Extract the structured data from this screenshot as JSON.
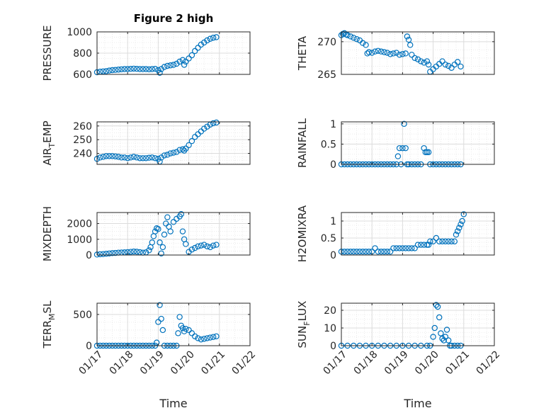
{
  "title": "Figure 2 high",
  "marker_color": "#0072bd",
  "chart_data": [
    {
      "type": "scatter",
      "ylabel": "PRESSURE",
      "ylabel_sub": "",
      "ylim": [
        600,
        1000
      ],
      "yticks": [
        600,
        800,
        1000
      ],
      "ytick_labels": [
        "600",
        "800",
        "1000"
      ],
      "xlim": [
        0,
        5
      ],
      "xticks": [
        0,
        1,
        2,
        3,
        4,
        5
      ],
      "xtick_labels": [
        "01/17",
        "01/18",
        "01/19",
        "01/20",
        "01/21",
        "01/22"
      ],
      "show_xticklabels": false,
      "xlabel": "",
      "x": [
        0.0,
        0.1,
        0.2,
        0.3,
        0.4,
        0.5,
        0.6,
        0.7,
        0.8,
        0.9,
        1.0,
        1.1,
        1.2,
        1.3,
        1.4,
        1.5,
        1.6,
        1.7,
        1.8,
        1.9,
        2.0,
        2.05,
        2.1,
        2.2,
        2.3,
        2.4,
        2.5,
        2.6,
        2.7,
        2.8,
        2.85,
        2.9,
        3.0,
        3.1,
        3.2,
        3.3,
        3.4,
        3.5,
        3.6,
        3.7,
        3.8,
        3.9
      ],
      "y": [
        620,
        625,
        628,
        630,
        636,
        640,
        642,
        645,
        648,
        650,
        650,
        652,
        654,
        652,
        650,
        650,
        650,
        648,
        650,
        652,
        640,
        615,
        650,
        670,
        680,
        685,
        690,
        700,
        720,
        735,
        690,
        720,
        750,
        780,
        820,
        850,
        880,
        900,
        920,
        935,
        945,
        950
      ]
    },
    {
      "type": "scatter",
      "ylabel": "THETA",
      "ylabel_sub": "",
      "ylim": [
        265,
        271.5
      ],
      "yticks": [
        265,
        270
      ],
      "ytick_labels": [
        "265",
        "270"
      ],
      "xlim": [
        0,
        5
      ],
      "xticks": [
        0,
        1,
        2,
        3,
        4,
        5
      ],
      "xtick_labels": [
        "01/17",
        "01/18",
        "01/19",
        "01/20",
        "01/21",
        "01/22"
      ],
      "show_xticklabels": false,
      "xlabel": "",
      "x": [
        0.0,
        0.05,
        0.1,
        0.15,
        0.2,
        0.3,
        0.4,
        0.5,
        0.6,
        0.7,
        0.8,
        0.85,
        0.9,
        1.0,
        1.1,
        1.2,
        1.3,
        1.4,
        1.5,
        1.6,
        1.7,
        1.8,
        1.9,
        2.0,
        2.1,
        2.15,
        2.2,
        2.25,
        2.3,
        2.4,
        2.5,
        2.6,
        2.7,
        2.8,
        2.85,
        2.9,
        3.0,
        3.1,
        3.2,
        3.3,
        3.4,
        3.5,
        3.6,
        3.7,
        3.8,
        3.9
      ],
      "y": [
        271.0,
        271.2,
        271.3,
        271.1,
        271.0,
        270.8,
        270.6,
        270.4,
        270.2,
        269.8,
        269.5,
        268.2,
        268.4,
        268.3,
        268.5,
        268.6,
        268.5,
        268.4,
        268.3,
        268.1,
        268.2,
        268.3,
        268.0,
        268.1,
        268.2,
        270.8,
        270.3,
        269.5,
        268.0,
        267.5,
        267.3,
        267.0,
        266.8,
        267.0,
        266.5,
        265.4,
        265.8,
        266.2,
        266.6,
        267.0,
        266.5,
        266.3,
        266.0,
        266.5,
        266.9,
        266.2
      ]
    },
    {
      "type": "scatter",
      "ylabel": "AIR",
      "ylabel_sub": "T",
      "ylabel_after": "EMP",
      "ylim": [
        232,
        263
      ],
      "yticks": [
        240,
        250,
        260
      ],
      "ytick_labels": [
        "240",
        "250",
        "260"
      ],
      "xlim": [
        0,
        5
      ],
      "xticks": [
        0,
        1,
        2,
        3,
        4,
        5
      ],
      "xtick_labels": [
        "01/17",
        "01/18",
        "01/19",
        "01/20",
        "01/21",
        "01/22"
      ],
      "show_xticklabels": false,
      "xlabel": "",
      "x": [
        0.0,
        0.1,
        0.2,
        0.3,
        0.4,
        0.5,
        0.6,
        0.7,
        0.8,
        0.9,
        1.0,
        1.1,
        1.2,
        1.3,
        1.4,
        1.5,
        1.6,
        1.7,
        1.8,
        1.9,
        2.0,
        2.05,
        2.1,
        2.2,
        2.3,
        2.4,
        2.5,
        2.6,
        2.7,
        2.8,
        2.85,
        2.9,
        3.0,
        3.1,
        3.2,
        3.3,
        3.4,
        3.5,
        3.6,
        3.7,
        3.8,
        3.9
      ],
      "y": [
        236,
        237,
        237.5,
        238,
        238,
        238,
        237.8,
        237.5,
        237,
        237,
        236.5,
        237,
        237.5,
        237,
        236.5,
        236.5,
        236.5,
        236.8,
        237,
        236.5,
        236,
        234,
        237,
        238.5,
        239,
        240,
        240.5,
        241,
        242.5,
        243,
        242,
        243.5,
        246,
        249,
        252,
        254,
        256,
        258,
        259.5,
        261,
        262,
        262.5
      ]
    },
    {
      "type": "scatter",
      "ylabel": "RAINFALL",
      "ylabel_sub": "",
      "ylim": [
        0,
        1.05
      ],
      "yticks": [
        0,
        0.5,
        1
      ],
      "ytick_labels": [
        "0",
        "0.5",
        "1"
      ],
      "xlim": [
        0,
        5
      ],
      "xticks": [
        0,
        1,
        2,
        3,
        4,
        5
      ],
      "xtick_labels": [
        "01/17",
        "01/18",
        "01/19",
        "01/20",
        "01/21",
        "01/22"
      ],
      "show_xticklabels": false,
      "xlabel": "",
      "x": [
        0.0,
        0.1,
        0.2,
        0.3,
        0.4,
        0.5,
        0.6,
        0.7,
        0.8,
        0.9,
        1.0,
        1.1,
        1.2,
        1.3,
        1.4,
        1.5,
        1.6,
        1.7,
        1.8,
        1.85,
        1.9,
        1.95,
        2.0,
        2.05,
        2.1,
        2.15,
        2.2,
        2.3,
        2.4,
        2.5,
        2.6,
        2.7,
        2.75,
        2.8,
        2.85,
        2.9,
        3.0,
        3.1,
        3.2,
        3.3,
        3.4,
        3.5,
        3.6,
        3.7,
        3.8,
        3.9
      ],
      "y": [
        0,
        0,
        0,
        0,
        0,
        0,
        0,
        0,
        0,
        0,
        0,
        0,
        0,
        0,
        0,
        0,
        0,
        0,
        0,
        0.2,
        0.4,
        0,
        0.4,
        1.0,
        0.4,
        0,
        0,
        0,
        0,
        0,
        0,
        0.4,
        0.3,
        0.3,
        0.3,
        0,
        0,
        0,
        0,
        0,
        0,
        0,
        0,
        0,
        0,
        0
      ]
    },
    {
      "type": "scatter",
      "ylabel": "MIXDEPTH",
      "ylabel_sub": "",
      "ylim": [
        0,
        2700
      ],
      "yticks": [
        0,
        1000,
        2000
      ],
      "ytick_labels": [
        "0",
        "1000",
        "2000"
      ],
      "xlim": [
        0,
        5
      ],
      "xticks": [
        0,
        1,
        2,
        3,
        4,
        5
      ],
      "xtick_labels": [
        "01/17",
        "01/18",
        "01/19",
        "01/20",
        "01/21",
        "01/22"
      ],
      "show_xticklabels": false,
      "xlabel": "",
      "x": [
        0.0,
        0.1,
        0.2,
        0.3,
        0.4,
        0.5,
        0.6,
        0.7,
        0.8,
        0.9,
        1.0,
        1.1,
        1.2,
        1.3,
        1.4,
        1.5,
        1.6,
        1.7,
        1.75,
        1.8,
        1.85,
        1.9,
        1.95,
        2.0,
        2.05,
        2.1,
        2.15,
        2.2,
        2.25,
        2.3,
        2.35,
        2.4,
        2.5,
        2.6,
        2.7,
        2.75,
        2.8,
        2.85,
        2.9,
        3.0,
        3.1,
        3.2,
        3.3,
        3.4,
        3.5,
        3.6,
        3.7,
        3.8,
        3.9
      ],
      "y": [
        30,
        50,
        60,
        80,
        100,
        120,
        130,
        150,
        160,
        170,
        180,
        200,
        220,
        210,
        180,
        150,
        170,
        300,
        500,
        800,
        1200,
        1500,
        1700,
        1650,
        800,
        100,
        500,
        1300,
        2000,
        2400,
        1800,
        1500,
        2100,
        2300,
        2450,
        2600,
        1500,
        1000,
        700,
        200,
        350,
        450,
        550,
        600,
        650,
        550,
        500,
        600,
        650
      ]
    },
    {
      "type": "scatter",
      "ylabel": "H2OMIXRA",
      "ylabel_sub": "",
      "ylim": [
        0,
        1.25
      ],
      "yticks": [
        0,
        0.5,
        1
      ],
      "ytick_labels": [
        "0",
        "0.5",
        "1"
      ],
      "xlim": [
        0,
        5
      ],
      "xticks": [
        0,
        1,
        2,
        3,
        4,
        5
      ],
      "xtick_labels": [
        "01/17",
        "01/18",
        "01/19",
        "01/20",
        "01/21",
        "01/22"
      ],
      "show_xticklabels": false,
      "xlabel": "",
      "x": [
        0.0,
        0.1,
        0.2,
        0.3,
        0.4,
        0.5,
        0.6,
        0.7,
        0.8,
        0.9,
        1.0,
        1.1,
        1.2,
        1.3,
        1.4,
        1.5,
        1.6,
        1.7,
        1.8,
        1.9,
        2.0,
        2.1,
        2.2,
        2.3,
        2.4,
        2.5,
        2.6,
        2.7,
        2.8,
        2.85,
        2.9,
        3.0,
        3.1,
        3.2,
        3.3,
        3.4,
        3.5,
        3.6,
        3.7,
        3.75,
        3.8,
        3.85,
        3.9,
        3.95,
        4.0
      ],
      "y": [
        0.1,
        0.1,
        0.1,
        0.1,
        0.1,
        0.1,
        0.1,
        0.1,
        0.1,
        0.1,
        0.1,
        0.2,
        0.1,
        0.1,
        0.1,
        0.1,
        0.1,
        0.2,
        0.2,
        0.2,
        0.2,
        0.2,
        0.2,
        0.2,
        0.2,
        0.3,
        0.3,
        0.3,
        0.3,
        0.3,
        0.4,
        0.4,
        0.5,
        0.4,
        0.4,
        0.4,
        0.4,
        0.4,
        0.4,
        0.6,
        0.7,
        0.8,
        0.9,
        1.0,
        1.2
      ]
    },
    {
      "type": "scatter",
      "ylabel": "TERR",
      "ylabel_sub": "M",
      "ylabel_after": "SL",
      "ylim": [
        0,
        680
      ],
      "yticks": [
        0,
        500
      ],
      "ytick_labels": [
        "0",
        "500"
      ],
      "xlim": [
        0,
        5
      ],
      "xticks": [
        0,
        1,
        2,
        3,
        4,
        5
      ],
      "xtick_labels": [
        "01/17",
        "01/18",
        "01/19",
        "01/20",
        "01/21",
        "01/22"
      ],
      "show_xticklabels": true,
      "xlabel": "Time",
      "x": [
        0.0,
        0.1,
        0.2,
        0.3,
        0.4,
        0.5,
        0.6,
        0.7,
        0.8,
        0.9,
        1.0,
        1.1,
        1.2,
        1.3,
        1.4,
        1.5,
        1.6,
        1.7,
        1.8,
        1.9,
        1.95,
        2.0,
        2.05,
        2.1,
        2.15,
        2.2,
        2.3,
        2.4,
        2.5,
        2.6,
        2.65,
        2.7,
        2.75,
        2.8,
        2.85,
        2.9,
        3.0,
        3.1,
        3.2,
        3.3,
        3.4,
        3.5,
        3.6,
        3.7,
        3.8,
        3.9
      ],
      "y": [
        0,
        0,
        0,
        0,
        0,
        0,
        0,
        0,
        0,
        0,
        0,
        0,
        0,
        0,
        0,
        0,
        0,
        0,
        0,
        0,
        50,
        380,
        650,
        430,
        250,
        0,
        0,
        0,
        0,
        0,
        200,
        460,
        320,
        280,
        230,
        270,
        250,
        200,
        150,
        120,
        100,
        110,
        120,
        130,
        140,
        150
      ]
    },
    {
      "type": "scatter",
      "ylabel": "SUN",
      "ylabel_sub": "F",
      "ylabel_after": "LUX",
      "ylim": [
        0,
        24
      ],
      "yticks": [
        0,
        10,
        20
      ],
      "ytick_labels": [
        "0",
        "10",
        "20"
      ],
      "xlim": [
        0,
        5
      ],
      "xticks": [
        0,
        1,
        2,
        3,
        4,
        5
      ],
      "xtick_labels": [
        "01/17",
        "01/18",
        "01/19",
        "01/20",
        "01/21",
        "01/22"
      ],
      "show_xticklabels": true,
      "xlabel": "Time",
      "x": [
        0.0,
        0.2,
        0.4,
        0.6,
        0.8,
        1.0,
        1.2,
        1.4,
        1.6,
        1.8,
        2.0,
        2.2,
        2.4,
        2.6,
        2.8,
        2.9,
        3.0,
        3.05,
        3.1,
        3.15,
        3.2,
        3.25,
        3.3,
        3.35,
        3.4,
        3.45,
        3.5,
        3.55,
        3.6,
        3.7,
        3.8,
        3.9
      ],
      "y": [
        0,
        0,
        0,
        0,
        0,
        0,
        0,
        0,
        0,
        0,
        0,
        0,
        0,
        0,
        0,
        0,
        5,
        10,
        23,
        22,
        16,
        7,
        4,
        3,
        5,
        9,
        3,
        0,
        0,
        0,
        0,
        0
      ]
    }
  ]
}
